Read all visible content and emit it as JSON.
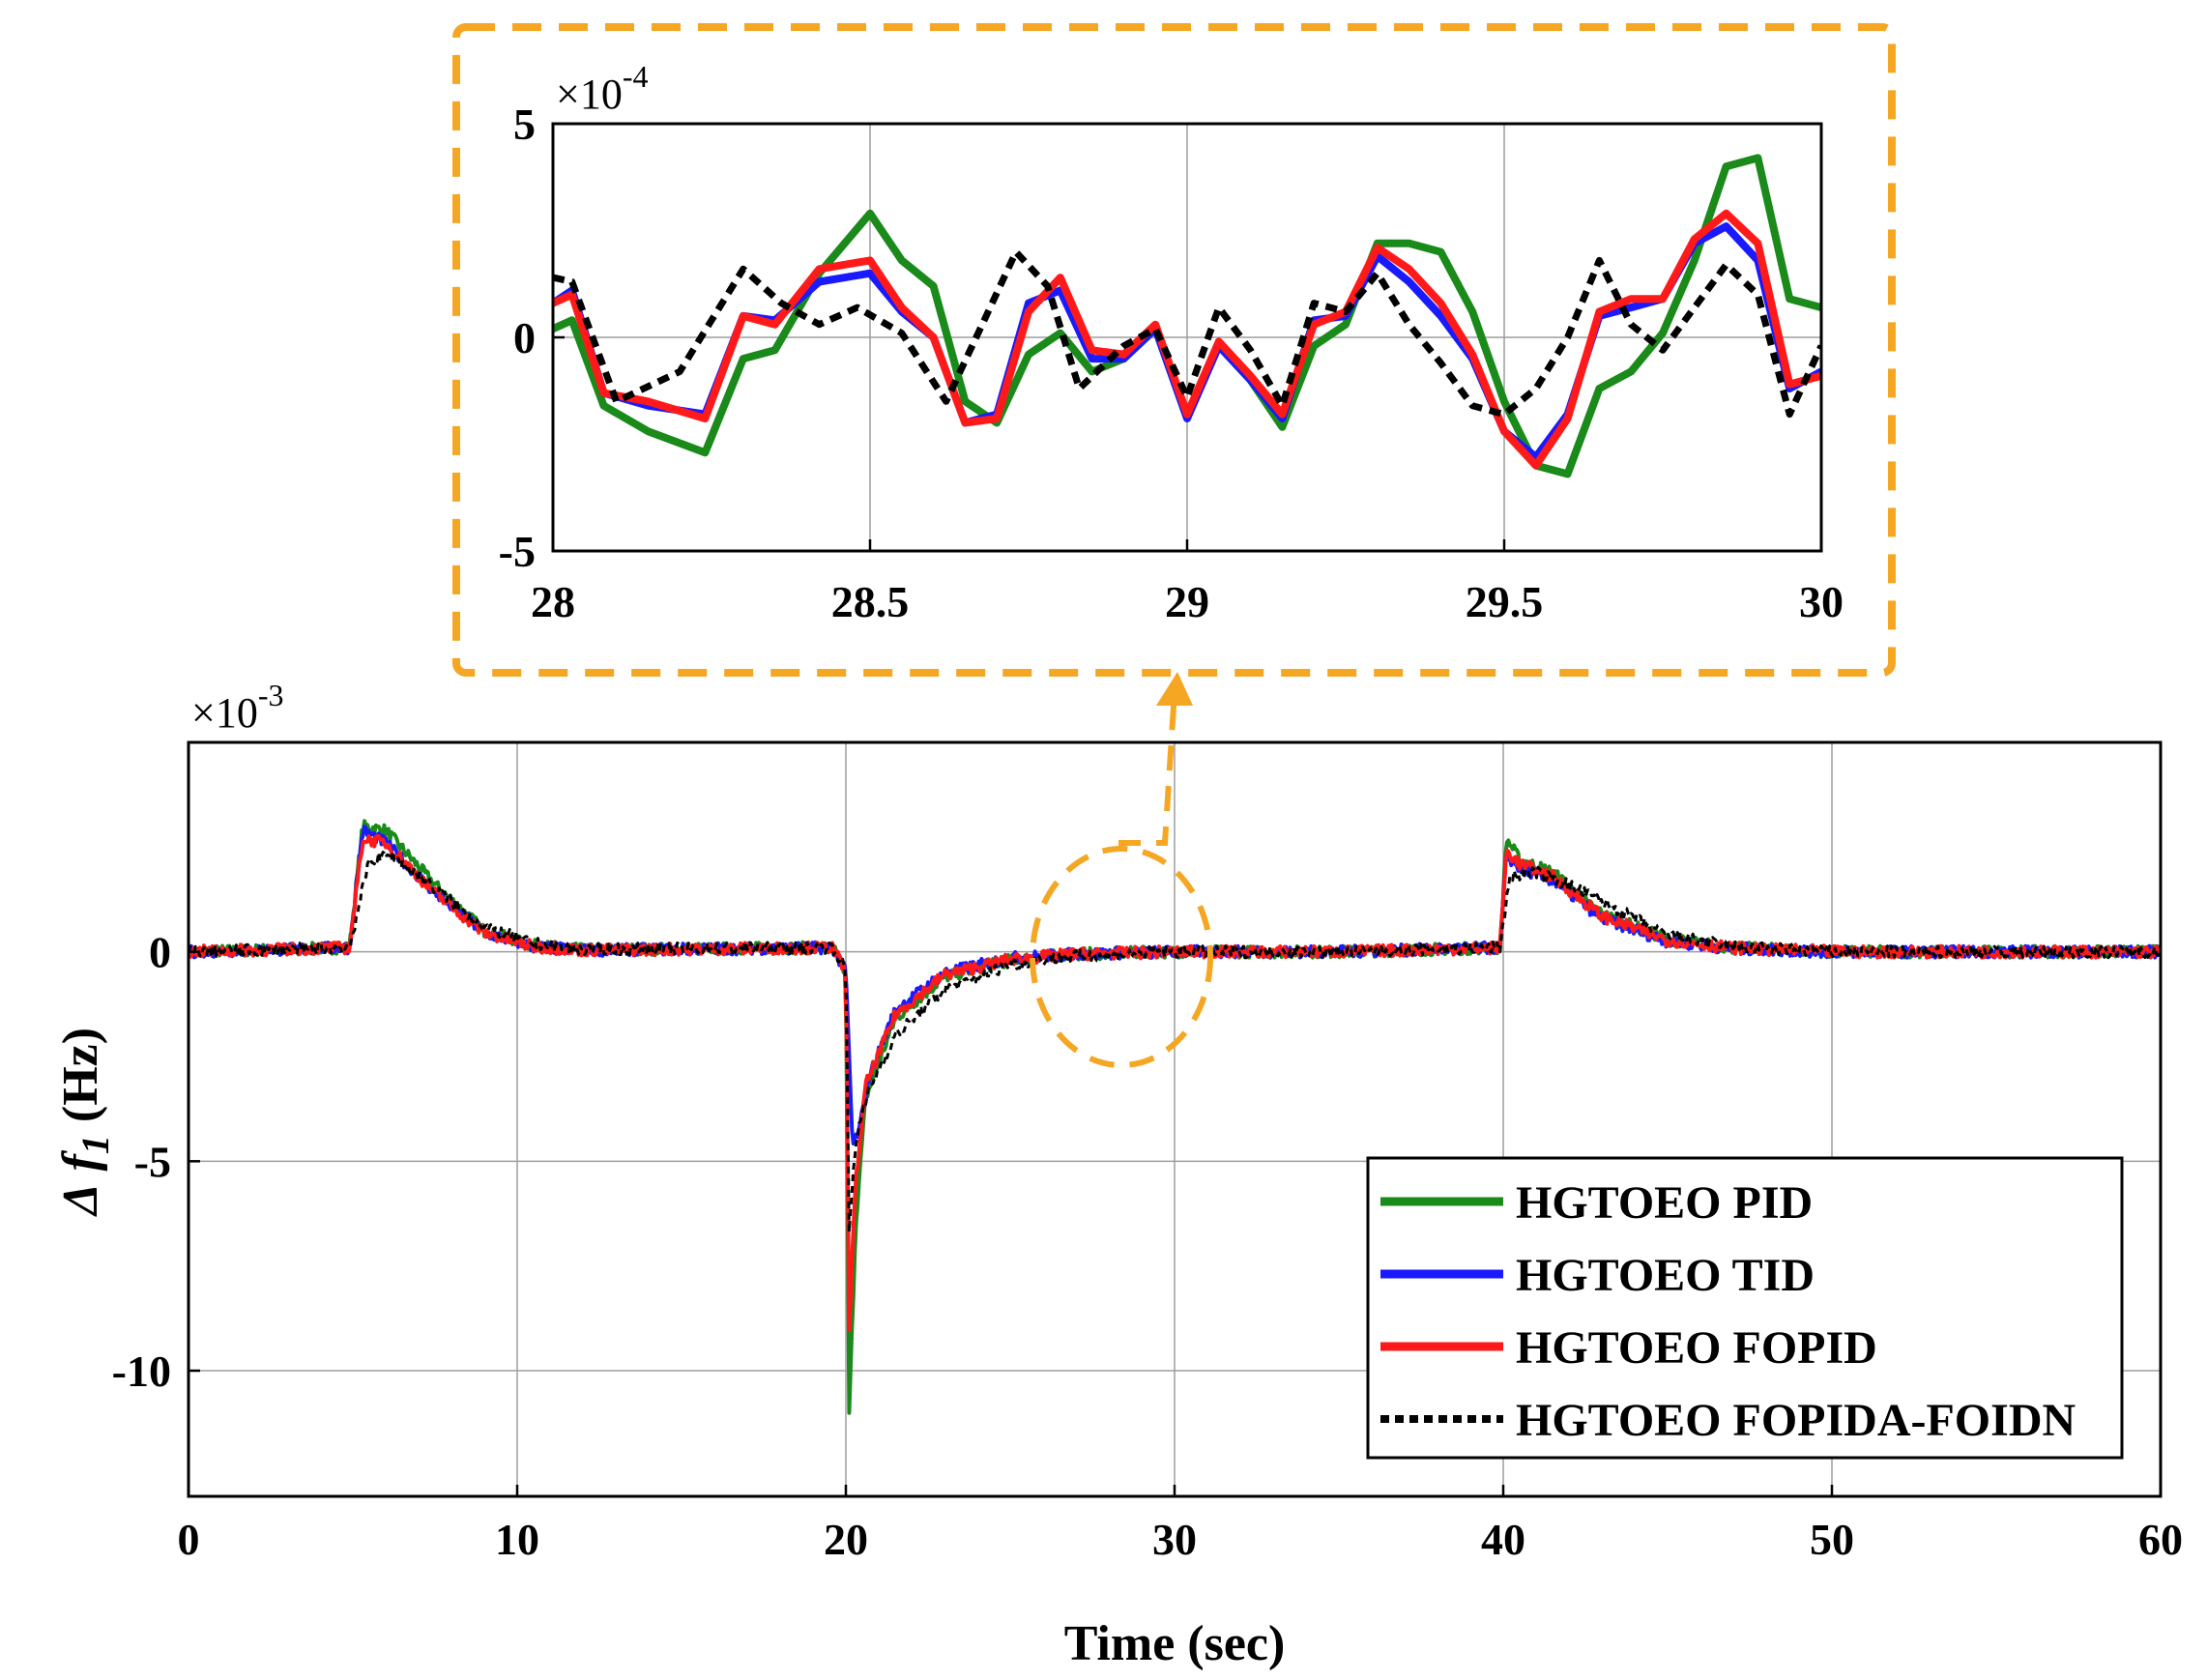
{
  "chart_data": [
    {
      "id": "main",
      "type": "line",
      "title": "",
      "xlabel": "Time (sec)",
      "ylabel_delta": "Δ",
      "ylabel_symbol": "f",
      "ylabel_sub": "1",
      "ylabel_unit": "(Hz)",
      "xlim": [
        0,
        60
      ],
      "ylim": [
        -13,
        5
      ],
      "xticks": [
        0,
        10,
        20,
        30,
        40,
        50,
        60
      ],
      "xtick_labels": [
        "0",
        "10",
        "20",
        "30",
        "40",
        "50",
        "60"
      ],
      "yticks": [
        -10,
        -5,
        0
      ],
      "ytick_labels": [
        "-10",
        "-5",
        "0"
      ],
      "y_multiplier_base": "×10",
      "y_multiplier_exp": "-3",
      "grid": true,
      "legend_position": "bottom-right",
      "series": [
        {
          "name": "HGTOEO PID",
          "color": "#1a8a1a",
          "dash": "solid",
          "x": [
            0,
            4.9,
            5.3,
            6.0,
            7.5,
            9.0,
            10.5,
            12,
            19.6,
            20.0,
            20.1,
            20.3,
            20.6,
            21.5,
            23,
            25,
            27,
            30,
            35,
            39.9,
            40.1,
            40.5,
            41.5,
            43,
            45,
            47,
            50,
            55,
            60
          ],
          "y": [
            0,
            0.1,
            3.0,
            2.9,
            1.6,
            0.5,
            0.15,
            0.05,
            0.1,
            -0.5,
            -11.0,
            -6.5,
            -3.5,
            -1.6,
            -0.6,
            -0.2,
            -0.05,
            0,
            0,
            0.1,
            2.7,
            2.2,
            1.9,
            0.9,
            0.3,
            0.1,
            0,
            0,
            0
          ]
        },
        {
          "name": "HGTOEO TID",
          "color": "#1a1aff",
          "dash": "solid",
          "x": [
            0,
            4.9,
            5.3,
            6.0,
            7.5,
            9.0,
            10.5,
            12,
            19.6,
            20.0,
            20.2,
            20.4,
            20.7,
            21.5,
            23,
            25,
            27,
            30,
            35,
            39.9,
            40.1,
            40.5,
            41.5,
            43,
            45,
            47,
            50,
            55,
            60
          ],
          "y": [
            0,
            0.1,
            2.9,
            2.6,
            1.4,
            0.45,
            0.12,
            0.04,
            0.1,
            -0.5,
            -4.6,
            -4.3,
            -3.0,
            -1.4,
            -0.5,
            -0.15,
            -0.05,
            0,
            0,
            0.1,
            2.3,
            2.0,
            1.7,
            0.8,
            0.25,
            0.08,
            0,
            0,
            0
          ]
        },
        {
          "name": "HGTOEO FOPID",
          "color": "#ff1a1a",
          "dash": "solid",
          "x": [
            0,
            4.9,
            5.3,
            6.0,
            7.5,
            9.0,
            10.5,
            12,
            19.6,
            20.0,
            20.1,
            20.3,
            20.6,
            21.5,
            23,
            25,
            27,
            30,
            35,
            39.9,
            40.1,
            40.5,
            41.5,
            43,
            45,
            47,
            50,
            55,
            60
          ],
          "y": [
            0,
            0.1,
            2.7,
            2.6,
            1.4,
            0.45,
            0.12,
            0.04,
            0.1,
            -0.5,
            -8.9,
            -5.5,
            -3.2,
            -1.5,
            -0.55,
            -0.18,
            -0.05,
            0,
            0,
            0.1,
            2.4,
            2.1,
            1.8,
            0.85,
            0.28,
            0.09,
            0,
            0,
            0
          ]
        },
        {
          "name": "HGTOEO FOPIDA-FOIDN",
          "color": "#000000",
          "dash": "dotted",
          "x": [
            0,
            4.9,
            5.5,
            6.2,
            7.5,
            9.0,
            10.5,
            12,
            19.6,
            20.0,
            20.1,
            20.3,
            20.7,
            21.5,
            23,
            25,
            27,
            30,
            35,
            39.9,
            40.2,
            41.0,
            42,
            43.5,
            45,
            47,
            50,
            55,
            60
          ],
          "y": [
            0,
            0.1,
            2.2,
            2.3,
            1.5,
            0.6,
            0.2,
            0.06,
            0.1,
            -0.4,
            -6.6,
            -4.5,
            -3.3,
            -2.0,
            -0.9,
            -0.3,
            -0.1,
            0,
            0,
            0.1,
            1.8,
            1.9,
            1.6,
            1.0,
            0.4,
            0.12,
            0,
            0,
            0
          ]
        }
      ]
    },
    {
      "id": "inset",
      "type": "line",
      "title": "",
      "xlim": [
        28,
        30
      ],
      "ylim": [
        -5,
        5
      ],
      "xticks": [
        28,
        28.5,
        29,
        29.5,
        30
      ],
      "xtick_labels": [
        "28",
        "28.5",
        "29",
        "29.5",
        "30"
      ],
      "yticks": [
        -5,
        0,
        5
      ],
      "ytick_labels": [
        "-5",
        "0",
        "5"
      ],
      "y_multiplier_base": "×10",
      "y_multiplier_exp": "-4",
      "grid": true,
      "series": [
        {
          "name": "HGTOEO PID",
          "color": "#1a8a1a",
          "dash": "solid",
          "x": [
            28,
            28.03,
            28.08,
            28.15,
            28.24,
            28.3,
            28.35,
            28.42,
            28.5,
            28.55,
            28.6,
            28.65,
            28.7,
            28.75,
            28.8,
            28.85,
            28.9,
            28.95,
            29.0,
            29.05,
            29.1,
            29.15,
            29.2,
            29.25,
            29.3,
            29.35,
            29.4,
            29.45,
            29.5,
            29.55,
            29.6,
            29.65,
            29.7,
            29.75,
            29.8,
            29.85,
            29.9,
            29.95,
            30.0
          ],
          "y": [
            0.2,
            0.4,
            -1.6,
            -2.2,
            -2.7,
            -0.5,
            -0.3,
            1.5,
            2.9,
            1.8,
            1.2,
            -1.5,
            -2.0,
            -0.4,
            0.1,
            -0.8,
            -0.5,
            0.2,
            -1.8,
            -0.2,
            -1.0,
            -2.1,
            -0.2,
            0.3,
            2.2,
            2.2,
            2.0,
            0.6,
            -1.5,
            -3.0,
            -3.2,
            -1.2,
            -0.8,
            0.1,
            1.8,
            4.0,
            4.2,
            0.9,
            0.7
          ]
        },
        {
          "name": "HGTOEO TID",
          "color": "#1a1aff",
          "dash": "solid",
          "x": [
            28,
            28.03,
            28.08,
            28.15,
            28.24,
            28.3,
            28.35,
            28.42,
            28.5,
            28.55,
            28.6,
            28.65,
            28.7,
            28.75,
            28.8,
            28.85,
            28.9,
            28.95,
            29.0,
            29.05,
            29.1,
            29.15,
            29.2,
            29.25,
            29.3,
            29.35,
            29.4,
            29.45,
            29.5,
            29.55,
            29.6,
            29.65,
            29.7,
            29.75,
            29.8,
            29.85,
            29.9,
            29.95,
            30.0
          ],
          "y": [
            0.8,
            1.1,
            -1.3,
            -1.6,
            -1.8,
            0.5,
            0.4,
            1.3,
            1.5,
            0.6,
            0.0,
            -2.0,
            -1.8,
            0.8,
            1.1,
            -0.5,
            -0.5,
            0.2,
            -1.9,
            -0.2,
            -1.0,
            -1.9,
            0.4,
            0.5,
            1.9,
            1.3,
            0.5,
            -0.5,
            -2.2,
            -2.8,
            -1.8,
            0.5,
            0.7,
            0.9,
            2.2,
            2.6,
            1.8,
            -1.2,
            -0.8
          ]
        },
        {
          "name": "HGTOEO FOPID",
          "color": "#ff1a1a",
          "dash": "solid",
          "x": [
            28,
            28.03,
            28.08,
            28.15,
            28.24,
            28.3,
            28.35,
            28.42,
            28.5,
            28.55,
            28.6,
            28.65,
            28.7,
            28.75,
            28.8,
            28.85,
            28.9,
            28.95,
            29.0,
            29.05,
            29.1,
            29.15,
            29.2,
            29.25,
            29.3,
            29.35,
            29.4,
            29.45,
            29.5,
            29.55,
            29.6,
            29.65,
            29.7,
            29.75,
            29.8,
            29.85,
            29.9,
            29.95,
            30.0
          ],
          "y": [
            0.8,
            1.0,
            -1.3,
            -1.5,
            -1.9,
            0.5,
            0.3,
            1.6,
            1.8,
            0.7,
            0.0,
            -2.0,
            -1.9,
            0.6,
            1.4,
            -0.3,
            -0.4,
            0.3,
            -1.8,
            -0.1,
            -0.9,
            -1.8,
            0.3,
            0.6,
            2.1,
            1.6,
            0.8,
            -0.4,
            -2.2,
            -3.0,
            -1.9,
            0.6,
            0.9,
            0.9,
            2.3,
            2.9,
            2.2,
            -1.1,
            -0.9
          ]
        },
        {
          "name": "HGTOEO FOPIDA-FOIDN",
          "color": "#000000",
          "dash": "dotted",
          "x": [
            28,
            28.03,
            28.1,
            28.2,
            28.3,
            28.36,
            28.42,
            28.48,
            28.55,
            28.62,
            28.68,
            28.73,
            28.78,
            28.83,
            28.9,
            28.95,
            29.0,
            29.05,
            29.1,
            29.15,
            29.2,
            29.25,
            29.3,
            29.35,
            29.4,
            29.45,
            29.5,
            29.55,
            29.6,
            29.65,
            29.7,
            29.75,
            29.8,
            29.85,
            29.9,
            29.95,
            30.0
          ],
          "y": [
            1.4,
            1.3,
            -1.5,
            -0.8,
            1.6,
            0.8,
            0.3,
            0.7,
            0.1,
            -1.5,
            0.4,
            2.0,
            1.2,
            -1.2,
            -0.2,
            0.2,
            -1.4,
            0.7,
            -0.3,
            -1.6,
            0.8,
            0.6,
            1.5,
            0.3,
            -0.6,
            -1.6,
            -1.8,
            -1.2,
            0.0,
            1.8,
            0.3,
            -0.3,
            0.7,
            1.7,
            1.0,
            -1.8,
            -0.2
          ]
        }
      ]
    }
  ],
  "colors": {
    "highlight": "#f5a623",
    "grid": "#9e9e9e",
    "axis": "#000000"
  }
}
